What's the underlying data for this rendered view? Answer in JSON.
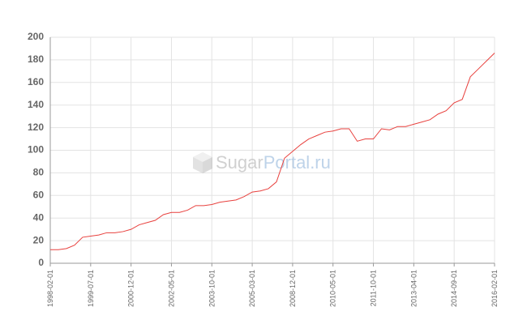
{
  "chart_data": {
    "type": "line",
    "watermark": {
      "part1": "Sugar",
      "part2": "Portal.ru"
    },
    "categories": [
      "1998-02-01",
      null,
      null,
      null,
      null,
      "1999-07-01",
      null,
      null,
      null,
      null,
      "2000-12-01",
      null,
      null,
      null,
      null,
      "2002-05-01",
      null,
      null,
      null,
      null,
      "2003-10-01",
      null,
      null,
      null,
      null,
      "2005-03-01",
      null,
      null,
      null,
      null,
      "2008-12-01",
      null,
      null,
      null,
      null,
      "2010-05-01",
      null,
      null,
      null,
      null,
      "2011-10-01",
      null,
      null,
      null,
      null,
      "2013-04-01",
      null,
      null,
      null,
      null,
      "2014-09-01",
      null,
      null,
      null,
      null,
      "2016-02-01"
    ],
    "series": [
      {
        "color": "#e8413e",
        "values": [
          12,
          12,
          13,
          16,
          23,
          24,
          25,
          27,
          27,
          28,
          30,
          34,
          36,
          38,
          43,
          45,
          45,
          47,
          51,
          51,
          52,
          54,
          55,
          56,
          59,
          63,
          64,
          66,
          72,
          93,
          99,
          105,
          110,
          113,
          116,
          117,
          119,
          119,
          108,
          110,
          110,
          119,
          118,
          121,
          121,
          123,
          125,
          127,
          132,
          135,
          142,
          145,
          165,
          172,
          179,
          186
        ]
      }
    ],
    "ylim": [
      0,
      200
    ],
    "yticks": [
      0,
      20,
      40,
      60,
      80,
      100,
      120,
      140,
      160,
      180,
      200
    ],
    "grid": true
  }
}
